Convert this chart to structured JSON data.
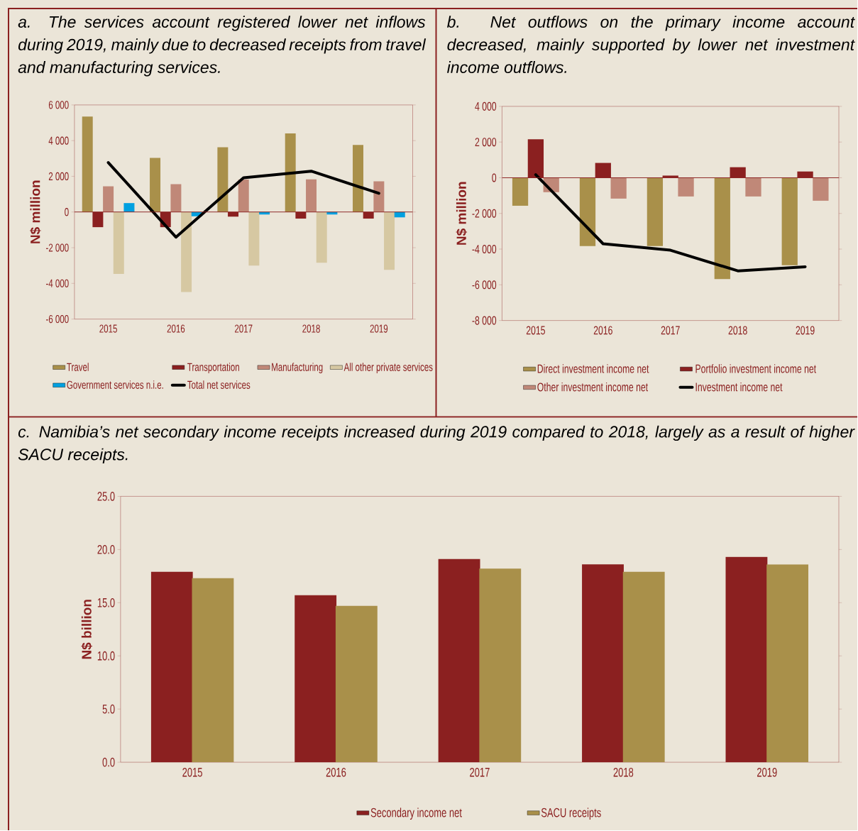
{
  "chart_data": [
    {
      "type": "bar",
      "title": "a. The services account registered lower net inflows during 2019, mainly due to decreased receipts from travel and manufacturing services.",
      "ylabel": "N$ million",
      "categories": [
        "2015",
        "2016",
        "2017",
        "2018",
        "2019"
      ],
      "series": [
        {
          "name": "Travel",
          "color": "#a9904a",
          "values": [
            5350,
            3030,
            3630,
            4400,
            3760
          ]
        },
        {
          "name": "Transportation",
          "color": "#8b2020",
          "values": [
            -850,
            -850,
            -260,
            -370,
            -370
          ]
        },
        {
          "name": "Manufacturing",
          "color": "#c08878",
          "values": [
            1440,
            1560,
            1820,
            1830,
            1720
          ]
        },
        {
          "name": "All other private services",
          "color": "#d6c8a2",
          "values": [
            -3470,
            -4480,
            -3000,
            -2840,
            -3240
          ]
        },
        {
          "name": "Government  services n.i.e.",
          "color": "#00a0e0",
          "values": [
            500,
            -240,
            -140,
            -140,
            -300
          ]
        },
        {
          "name": "Total net services",
          "color": "#000000",
          "type": "line",
          "values": [
            2770,
            -1410,
            1920,
            2290,
            1050
          ]
        }
      ],
      "ylim": [
        -6000,
        6000
      ],
      "yticks": [
        {
          "value": -6000,
          "label": "-6 000"
        },
        {
          "value": -4000,
          "label": "-4 000"
        },
        {
          "value": -2000,
          "label": "-2 000"
        },
        0,
        {
          "value": 2000,
          "label": "2 000"
        },
        {
          "value": 4000,
          "label": "4 000"
        },
        {
          "value": 6000,
          "label": "6 000"
        }
      ],
      "ref_lines": [
        {
          "axis": "y",
          "value": 0,
          "color": "#8b2020"
        }
      ],
      "legend": "bottom"
    },
    {
      "type": "bar",
      "title": "b. Net outflows on the primary income account decreased, mainly supported by lower net investment income outflows.",
      "ylabel": "N$ million",
      "categories": [
        "2015",
        "2016",
        "2017",
        "2018",
        "2019"
      ],
      "series": [
        {
          "name": "Direct  investment income net",
          "color": "#a9904a",
          "values": [
            -1570,
            -3830,
            -3830,
            -5680,
            -4900
          ]
        },
        {
          "name": "Portfolio investment income net",
          "color": "#8b2020",
          "values": [
            2160,
            830,
            120,
            590,
            350
          ]
        },
        {
          "name": "Other investment income net",
          "color": "#c08878",
          "values": [
            -810,
            -1170,
            -1050,
            -1050,
            -1290
          ]
        },
        {
          "name": "Investment income net",
          "color": "#000000",
          "type": "line",
          "values": [
            170,
            -3700,
            -4060,
            -5220,
            -4990
          ]
        }
      ],
      "ylim": [
        -8000,
        4000
      ],
      "yticks": [
        {
          "value": -8000,
          "label": "-8 000"
        },
        {
          "value": -6000,
          "label": "-6 000"
        },
        {
          "value": -4000,
          "label": "-4 000"
        },
        {
          "value": -2000,
          "label": "-2 000"
        },
        0,
        {
          "value": 2000,
          "label": "2 000"
        },
        {
          "value": 4000,
          "label": "4 000"
        }
      ],
      "ref_lines": [
        {
          "axis": "y",
          "value": 0,
          "color": "#8b2020"
        }
      ],
      "legend": "bottom"
    },
    {
      "type": "bar",
      "title": "c. Namibia’s net secondary income receipts increased during 2019 compared to 2018, largely as a result of higher SACU receipts.",
      "ylabel": "N$ billion",
      "categories": [
        "2015",
        "2016",
        "2017",
        "2018",
        "2019"
      ],
      "series": [
        {
          "name": "Secondary income net",
          "color": "#8b2020",
          "values": [
            17.9,
            15.7,
            19.1,
            18.6,
            19.3
          ]
        },
        {
          "name": "SACU receipts",
          "color": "#a9904a",
          "values": [
            17.3,
            14.7,
            18.2,
            17.9,
            18.6
          ]
        }
      ],
      "ylim": [
        0,
        25
      ],
      "yticks": [
        {
          "value": 0,
          "label": "0.0"
        },
        {
          "value": 5,
          "label": "5.0"
        },
        {
          "value": 10,
          "label": "10.0"
        },
        {
          "value": 15,
          "label": "15.0"
        },
        {
          "value": 20,
          "label": "20.0"
        },
        {
          "value": 25,
          "label": "25.0"
        }
      ],
      "legend": "bottom"
    }
  ]
}
